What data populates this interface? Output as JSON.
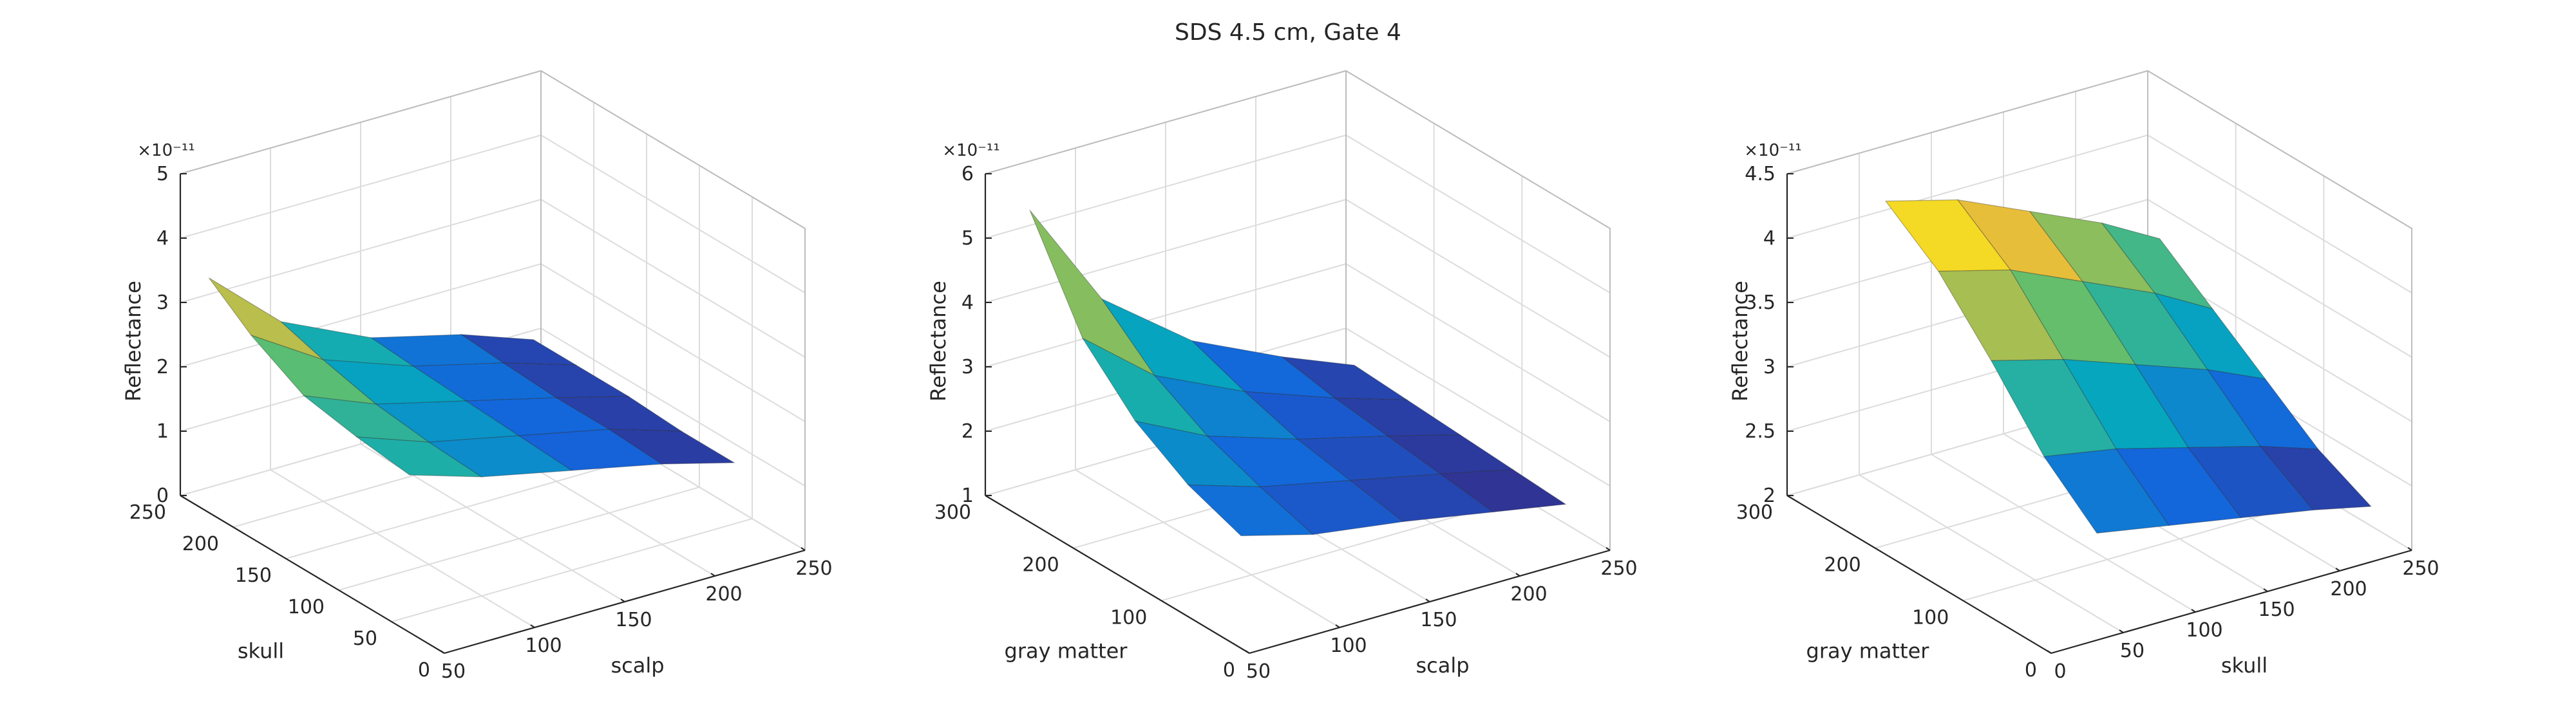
{
  "figure": {
    "title": "SDS 4.5 cm, Gate 4"
  },
  "chart_data": [
    {
      "type": "surface",
      "xlabel": "scalp",
      "ylabel": "skull",
      "zlabel": "Reflectance",
      "exponent": "×10⁻¹¹",
      "xlim": [
        50,
        250
      ],
      "ylim": [
        0,
        250
      ],
      "zlim": [
        0,
        5
      ],
      "xticks": [
        "50",
        "100",
        "150",
        "200",
        "250"
      ],
      "xtick_values": [
        50,
        100,
        150,
        200,
        250
      ],
      "yticks": [
        "0",
        "50",
        "100",
        "150",
        "200",
        "250"
      ],
      "ytick_values": [
        0,
        50,
        100,
        150,
        200,
        250
      ],
      "zticks": [
        "0",
        "1",
        "2",
        "3",
        "4",
        "5"
      ],
      "ztick_values": [
        0,
        1,
        2,
        3,
        4,
        5
      ],
      "x": [
        60,
        100,
        150,
        200,
        240
      ],
      "y": [
        50,
        100,
        150,
        200,
        240
      ],
      "z": [
        [
          2.2,
          1.85,
          1.55,
          1.25,
          0.95
        ],
        [
          2.3,
          1.9,
          1.6,
          1.3,
          0.95
        ],
        [
          2.45,
          2.0,
          1.65,
          1.3,
          1.0
        ],
        [
          2.9,
          2.2,
          1.7,
          1.35,
          1.0
        ],
        [
          3.4,
          2.4,
          1.75,
          1.4,
          1.0
        ]
      ],
      "grid": true
    },
    {
      "type": "surface",
      "xlabel": "scalp",
      "ylabel": "gray matter",
      "zlabel": "Reflectance",
      "exponent": "×10⁻¹¹",
      "xlim": [
        50,
        250
      ],
      "ylim": [
        0,
        300
      ],
      "zlim": [
        1,
        6
      ],
      "xticks": [
        "50",
        "100",
        "150",
        "200",
        "250"
      ],
      "xtick_values": [
        50,
        100,
        150,
        200,
        250
      ],
      "yticks": [
        "0",
        "100",
        "200",
        "300"
      ],
      "ytick_values": [
        0,
        100,
        200,
        300
      ],
      "zticks": [
        "1",
        "2",
        "3",
        "4",
        "5",
        "6"
      ],
      "ztick_values": [
        1,
        2,
        3,
        4,
        5,
        6
      ],
      "x": [
        60,
        100,
        150,
        200,
        240
      ],
      "y": [
        30,
        90,
        150,
        210,
        270
      ],
      "z": [
        [
          2.5,
          2.2,
          2.0,
          1.75,
          1.55
        ],
        [
          2.8,
          2.45,
          2.15,
          1.85,
          1.6
        ],
        [
          3.3,
          2.75,
          2.3,
          1.95,
          1.65
        ],
        [
          4.1,
          3.2,
          2.55,
          2.05,
          1.7
        ],
        [
          5.6,
          3.9,
          2.85,
          2.2,
          1.75
        ]
      ],
      "grid": true
    },
    {
      "type": "surface",
      "xlabel": "skull",
      "ylabel": "gray matter",
      "zlabel": "Reflectance",
      "exponent": "×10⁻¹¹",
      "xlim": [
        0,
        250
      ],
      "ylim": [
        0,
        300
      ],
      "zlim": [
        2,
        4.5
      ],
      "xticks": [
        "0",
        "50",
        "100",
        "150",
        "200",
        "250"
      ],
      "xtick_values": [
        0,
        50,
        100,
        150,
        200,
        250
      ],
      "yticks": [
        "0",
        "100",
        "200",
        "300"
      ],
      "ytick_values": [
        0,
        100,
        200,
        300
      ],
      "zticks": [
        "2",
        "2.5",
        "3",
        "3.5",
        "4",
        "4.5"
      ],
      "ztick_values": [
        2,
        2.5,
        3,
        3.5,
        4,
        4.5
      ],
      "x": [
        50,
        100,
        150,
        200,
        240
      ],
      "y": [
        30,
        90,
        150,
        210,
        270
      ],
      "z": [
        [
          2.65,
          2.55,
          2.45,
          2.35,
          2.25
        ],
        [
          3.0,
          2.9,
          2.75,
          2.6,
          2.45
        ],
        [
          3.5,
          3.35,
          3.15,
          2.95,
          2.75
        ],
        [
          3.95,
          3.8,
          3.55,
          3.3,
          3.05
        ],
        [
          4.25,
          4.1,
          3.85,
          3.6,
          3.35
        ]
      ],
      "grid": true
    }
  ]
}
